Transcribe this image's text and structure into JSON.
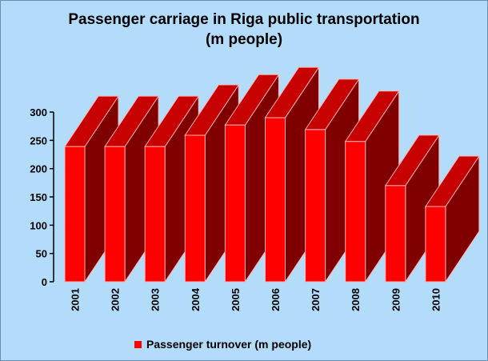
{
  "chart_data": {
    "type": "bar",
    "title": "Passenger carriage in Riga public transportation",
    "subtitle": "(m people)",
    "categories": [
      "2001",
      "2002",
      "2003",
      "2004",
      "2005",
      "2006",
      "2007",
      "2008",
      "2009",
      "2010"
    ],
    "series": [
      {
        "name": "Passenger turnover (m people)",
        "color": "#ff0000",
        "values": [
          239,
          239,
          239,
          259,
          277,
          290,
          269,
          248,
          170,
          133
        ]
      }
    ],
    "ylim": [
      0,
      300
    ],
    "yticks": [
      0,
      50,
      100,
      150,
      200,
      250,
      300
    ]
  }
}
